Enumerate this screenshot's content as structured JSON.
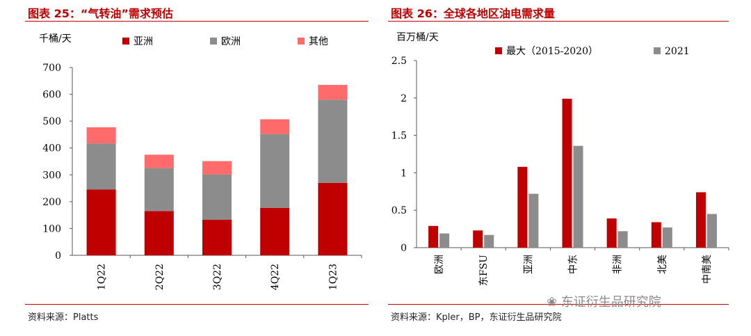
{
  "left": {
    "title": "图表 25：“气转油”需求预估",
    "unit": "千桶/天",
    "source": "资料来源：Platts"
  },
  "right": {
    "title": "图表 26：全球各地区油电需求量",
    "unit": "百万桶/天",
    "source": "资料来源：Kpler，BP，东证衍生品研究院"
  },
  "watermark": "东证衍生品研究院",
  "chart_data": [
    {
      "type": "bar",
      "stacked": true,
      "title": "“气转油”需求预估",
      "ylabel": "千桶/天",
      "ylim": [
        0,
        700
      ],
      "yticks": [
        0,
        100,
        200,
        300,
        400,
        500,
        600,
        700
      ],
      "categories": [
        "1Q22",
        "2Q22",
        "3Q22",
        "4Q22",
        "1Q23"
      ],
      "series": [
        {
          "name": "亚洲",
          "color": "#c00000",
          "values": [
            245,
            165,
            133,
            177,
            270
          ]
        },
        {
          "name": "欧洲",
          "color": "#8c8c8c",
          "values": [
            172,
            160,
            168,
            275,
            310
          ]
        },
        {
          "name": "其他",
          "color": "#ff6b6b",
          "values": [
            60,
            50,
            50,
            55,
            55
          ]
        }
      ],
      "legend": "top",
      "grid": false
    },
    {
      "type": "bar",
      "title": "全球各地区油电需求量",
      "ylabel": "百万桶/天",
      "ylim": [
        0,
        2.5
      ],
      "yticks": [
        "0",
        "0.5",
        "1",
        "1.5",
        "2",
        "2.5"
      ],
      "categories": [
        "欧洲",
        "东FSU",
        "亚洲",
        "中东",
        "非洲",
        "北美",
        "中南美"
      ],
      "series": [
        {
          "name": "最大（2015-2020）",
          "color": "#c00000",
          "values": [
            0.29,
            0.23,
            1.08,
            1.99,
            0.39,
            0.34,
            0.74
          ]
        },
        {
          "name": "2021",
          "color": "#8c8c8c",
          "values": [
            0.19,
            0.17,
            0.72,
            1.36,
            0.22,
            0.27,
            0.45
          ]
        }
      ],
      "legend": "top",
      "grid": false
    }
  ]
}
